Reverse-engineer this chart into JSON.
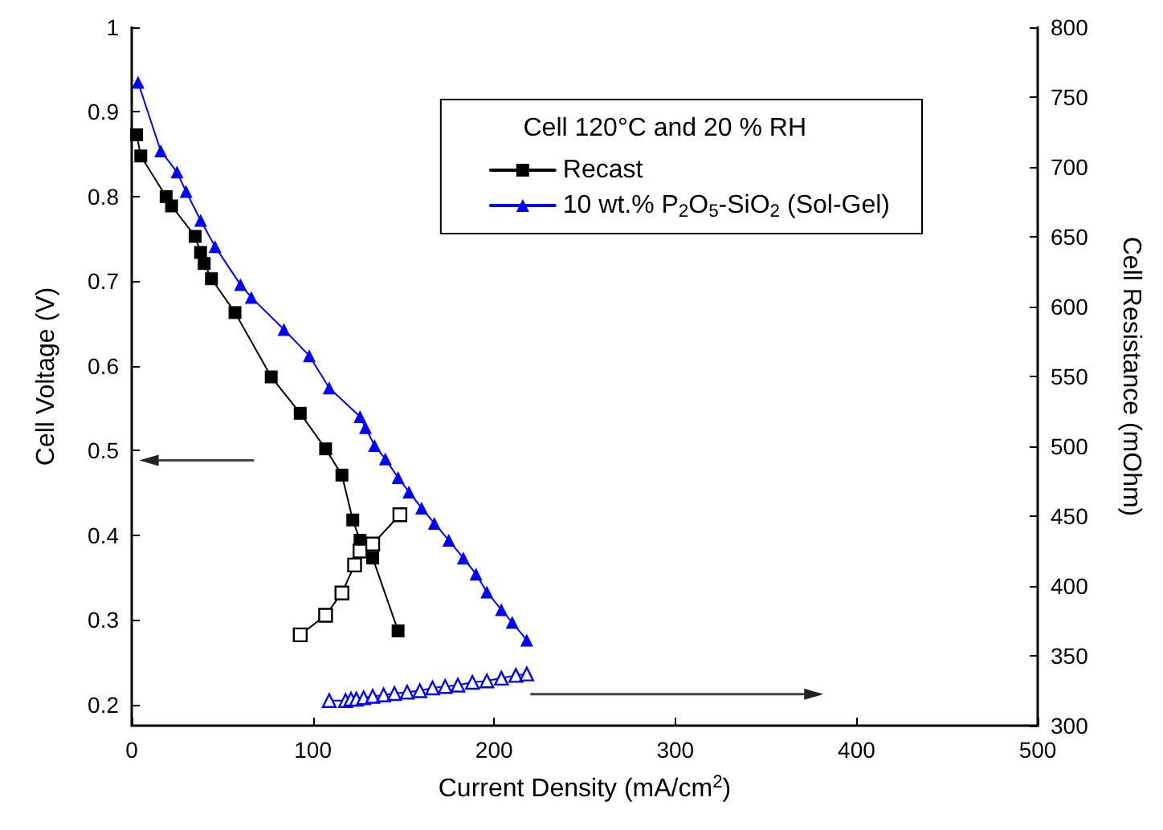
{
  "chart_data": {
    "type": "line",
    "xlabel": "Current Density (mA/cm$^{2}$)",
    "ylabel": "Cell Voltage (V)",
    "y2label": "Cell Resistance (mOhm)",
    "legend_title": "Cell 120°C and 20 % RH",
    "legend": "top right",
    "grid": false,
    "line_style": "solid",
    "xlim": [
      0,
      500
    ],
    "xticks": [
      0,
      100,
      200,
      300,
      400,
      500
    ],
    "ylim": [
      0.175,
      1.0
    ],
    "yticks": [
      0.2,
      0.3,
      0.4,
      0.5,
      0.6,
      0.7,
      0.8,
      0.9,
      1.0
    ],
    "y2lim": [
      300,
      800
    ],
    "y2ticks": [
      300,
      350,
      400,
      450,
      500,
      550,
      600,
      650,
      700,
      750,
      800
    ],
    "series": [
      {
        "name": "Recast",
        "color": "#000000",
        "marker": "square",
        "x": [
          2.7,
          5,
          19,
          22,
          35,
          38,
          40,
          44,
          57,
          77,
          93,
          107,
          116,
          122,
          126,
          133,
          147
        ],
        "values": [
          0.873,
          0.848,
          0.8,
          0.789,
          0.753,
          0.734,
          0.721,
          0.703,
          0.663,
          0.587,
          0.544,
          0.502,
          0.471,
          0.418,
          0.394,
          0.373,
          0.287
        ]
      },
      {
        "name": "10 wt.% P$_{2}$O$_{5}$-SiO$_{2}$ (Sol-Gel)",
        "color": "#0000ff",
        "marker": "triangle",
        "x": [
          3.5,
          16,
          25,
          30,
          38,
          46,
          60,
          66,
          84,
          98,
          109,
          126,
          129,
          134,
          140,
          147,
          153,
          160,
          167,
          175,
          183,
          190,
          196,
          204,
          210,
          218
        ],
        "values": [
          0.935,
          0.854,
          0.829,
          0.806,
          0.772,
          0.741,
          0.696,
          0.681,
          0.643,
          0.612,
          0.574,
          0.54,
          0.527,
          0.506,
          0.49,
          0.468,
          0.451,
          0.432,
          0.414,
          0.394,
          0.373,
          0.354,
          0.333,
          0.312,
          0.297,
          0.276
        ]
      },
      {
        "color": "#000000",
        "marker": "square",
        "axis": "y2",
        "x": [
          93,
          107,
          116,
          123,
          126,
          133,
          148
        ],
        "values": [
          365,
          379,
          395,
          415,
          425,
          430,
          451
        ]
      },
      {
        "color": "#0000ff",
        "marker": "triangle",
        "axis": "y2",
        "x": [
          109,
          118,
          121,
          124,
          128,
          133,
          139,
          145,
          152,
          159,
          166,
          173,
          180,
          188,
          196,
          204,
          212,
          218
        ],
        "values": [
          318,
          318,
          319,
          319,
          320,
          321,
          322,
          323,
          324,
          325,
          327,
          328,
          329,
          331,
          332,
          334,
          336,
          337
        ]
      }
    ]
  }
}
